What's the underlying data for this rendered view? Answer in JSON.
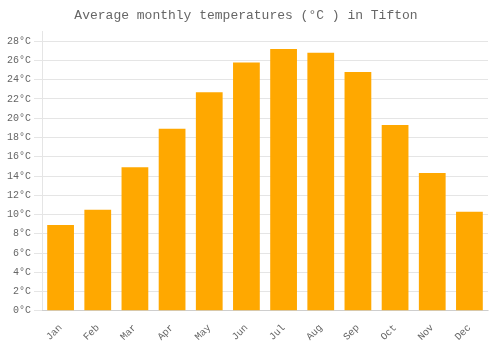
{
  "chart_data": {
    "type": "bar",
    "title": "Average monthly temperatures (°C ) in Tifton",
    "categories": [
      "Jan",
      "Feb",
      "Mar",
      "Apr",
      "May",
      "Jun",
      "Jul",
      "Aug",
      "Sep",
      "Oct",
      "Nov",
      "Dec"
    ],
    "values": [
      8.9,
      10.5,
      14.9,
      18.9,
      22.7,
      25.8,
      27.2,
      26.8,
      24.8,
      19.3,
      14.3,
      10.3
    ],
    "color": "#FFA800",
    "ylim": [
      0,
      29
    ],
    "yticks": [
      {
        "value": 0,
        "label": "0°C"
      },
      {
        "value": 2,
        "label": "2°C"
      },
      {
        "value": 4,
        "label": "4°C"
      },
      {
        "value": 6,
        "label": "6°C"
      },
      {
        "value": 8,
        "label": "8°C"
      },
      {
        "value": 10,
        "label": "10°C"
      },
      {
        "value": 12,
        "label": "12°C"
      },
      {
        "value": 14,
        "label": "14°C"
      },
      {
        "value": 16,
        "label": "16°C"
      },
      {
        "value": 18,
        "label": "18°C"
      },
      {
        "value": 20,
        "label": "20°C"
      },
      {
        "value": 22,
        "label": "22°C"
      },
      {
        "value": 24,
        "label": "24°C"
      },
      {
        "value": 26,
        "label": "26°C"
      },
      {
        "value": 28,
        "label": "28°C"
      }
    ],
    "grid": true
  }
}
